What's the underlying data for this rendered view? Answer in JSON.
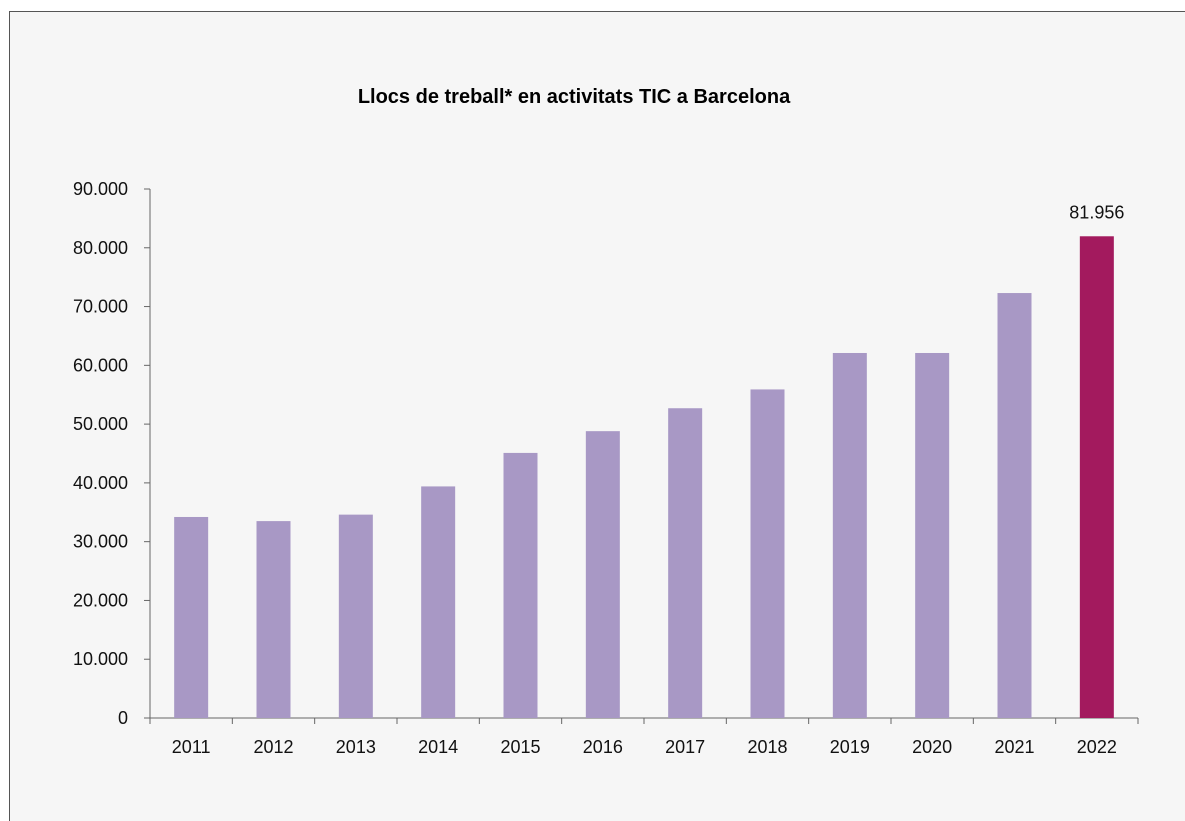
{
  "chart_data": {
    "type": "bar",
    "title": "Llocs de treball* en activitats TIC a Barcelona",
    "xlabel": "",
    "ylabel": "",
    "categories": [
      "2011",
      "2012",
      "2013",
      "2014",
      "2015",
      "2016",
      "2017",
      "2018",
      "2019",
      "2020",
      "2021",
      "2022"
    ],
    "values": [
      34200,
      33500,
      34600,
      39400,
      45100,
      48800,
      52700,
      55900,
      62100,
      62100,
      72300,
      81956
    ],
    "ylim": [
      0,
      90000
    ],
    "yticks": [
      0,
      10000,
      20000,
      30000,
      40000,
      50000,
      60000,
      70000,
      80000,
      90000
    ],
    "ytick_labels": [
      "0",
      "10.000",
      "20.000",
      "30.000",
      "40.000",
      "50.000",
      "60.000",
      "70.000",
      "80.000",
      "90.000"
    ],
    "data_labels": [
      {
        "category": "2022",
        "text": "81.956"
      }
    ],
    "colors": {
      "bar": "#a898c5",
      "highlight": "#a31a5e",
      "axis": "#666666"
    },
    "highlight_category": "2022",
    "grid": false,
    "legend": "none"
  }
}
